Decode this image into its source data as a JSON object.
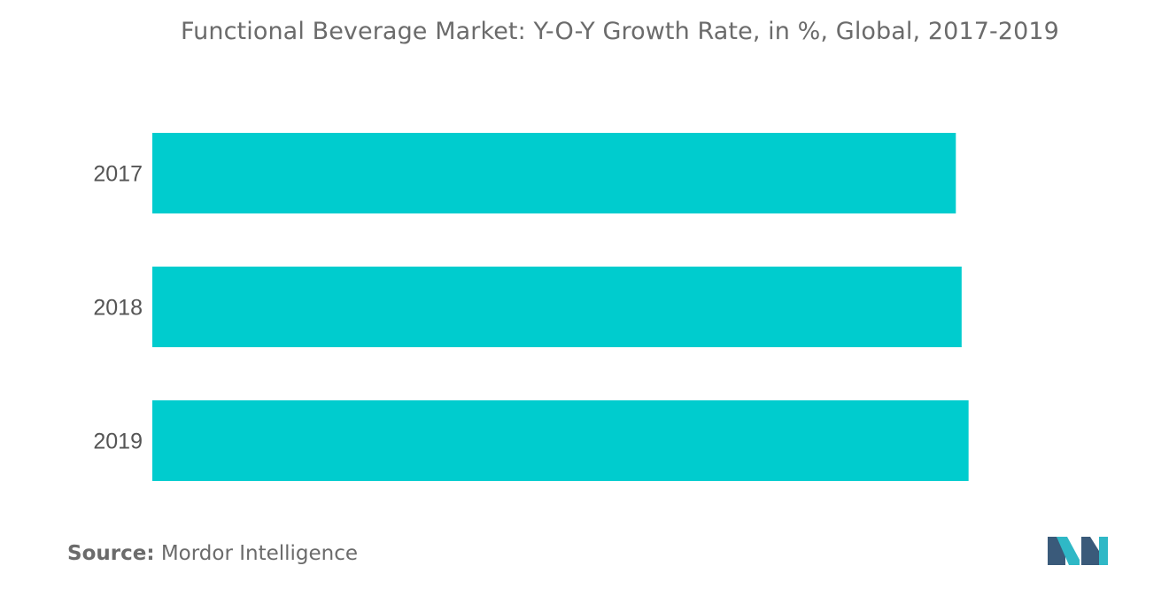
{
  "chart_data": {
    "type": "bar",
    "orientation": "horizontal",
    "title": "Functional Beverage Market: Y-O-Y Growth Rate,  in %, Global, 2017-2019",
    "categories": [
      "2017",
      "2018",
      "2019"
    ],
    "values": [
      6.95,
      7.0,
      7.06
    ],
    "xlim": [
      0,
      7.66
    ],
    "grid": false,
    "bar_color": "#00ccce"
  },
  "source": {
    "label": "Source:",
    "text": "Mordor Intelligence"
  },
  "logo": {
    "icon": "mordor-intelligence-logo-icon",
    "colors": [
      "#3a5a7a",
      "#2fb8c6"
    ]
  }
}
